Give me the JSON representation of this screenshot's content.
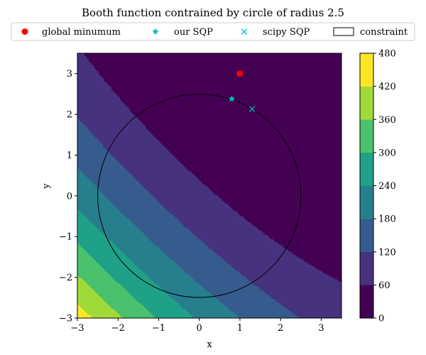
{
  "chart_data": {
    "type": "heatmap",
    "title": "Booth function contrained by circle of radius 2.5",
    "xlabel": "x",
    "ylabel": "y",
    "xlim": [
      -3,
      3.5
    ],
    "ylim": [
      -3,
      3.5
    ],
    "xticks": [
      "−3",
      "−2",
      "−1",
      "0",
      "1",
      "2",
      "3"
    ],
    "yticks": [
      "−3",
      "−2",
      "−1",
      "0",
      "1",
      "2",
      "3"
    ],
    "function": "booth",
    "contour_levels": [
      0,
      60,
      120,
      180,
      240,
      300,
      360,
      420,
      480
    ],
    "colorbar_ticks": [
      "0",
      "60",
      "120",
      "180",
      "240",
      "300",
      "360",
      "420",
      "480"
    ],
    "level_colors": [
      "#440154",
      "#46327e",
      "#365c8d",
      "#277f8e",
      "#1fa187",
      "#4ac16d",
      "#a0da39",
      "#fde725"
    ],
    "constraint": {
      "type": "circle",
      "center": [
        0,
        0
      ],
      "radius": 2.5
    },
    "legend_position": "top",
    "series": [
      {
        "name": "global minumum",
        "marker": "circle",
        "color": "#ff0000",
        "x": 1.0,
        "y": 3.0
      },
      {
        "name": "our SQP",
        "marker": "star",
        "color": "#00bfbf",
        "x": 0.8,
        "y": 2.38
      },
      {
        "name": "scipy SQP",
        "marker": "x",
        "color": "#00bfbf",
        "x": 1.3,
        "y": 2.13
      },
      {
        "name": "constraint",
        "marker": "line",
        "color": "#000000"
      }
    ]
  }
}
